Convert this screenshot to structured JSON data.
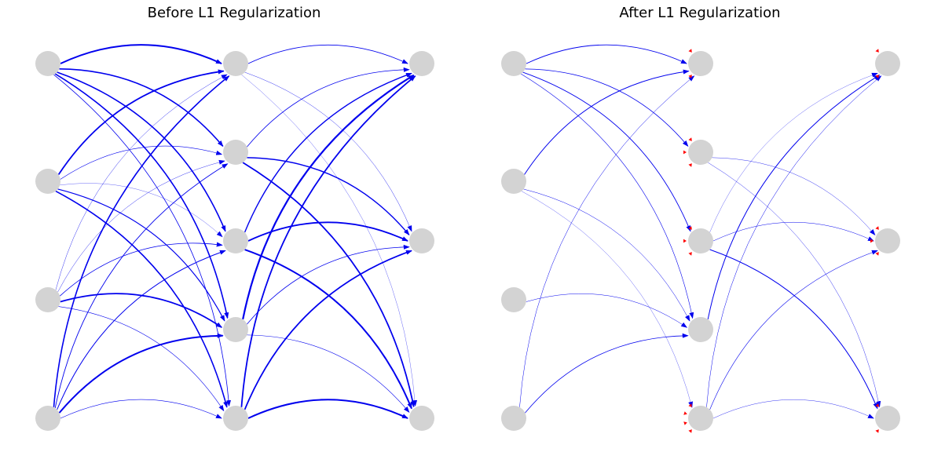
{
  "colors": {
    "node": "#d3d3d3",
    "edge": "#0000ee",
    "pruned_arrow": "#ff0000"
  },
  "panels": [
    {
      "title": "Before L1 Regularization",
      "layers": [
        4,
        5,
        3
      ],
      "edges": [
        {
          "from": [
            0,
            0
          ],
          "to": [
            1,
            0
          ],
          "w": 2.0
        },
        {
          "from": [
            0,
            0
          ],
          "to": [
            1,
            1
          ],
          "w": 1.6
        },
        {
          "from": [
            0,
            0
          ],
          "to": [
            1,
            2
          ],
          "w": 1.6
        },
        {
          "from": [
            0,
            0
          ],
          "to": [
            1,
            3
          ],
          "w": 1.6
        },
        {
          "from": [
            0,
            0
          ],
          "to": [
            1,
            4
          ],
          "w": 0.8
        },
        {
          "from": [
            0,
            1
          ],
          "to": [
            1,
            0
          ],
          "w": 1.8
        },
        {
          "from": [
            0,
            1
          ],
          "to": [
            1,
            1
          ],
          "w": 0.6
        },
        {
          "from": [
            0,
            1
          ],
          "to": [
            1,
            2
          ],
          "w": 0.3
        },
        {
          "from": [
            0,
            1
          ],
          "to": [
            1,
            3
          ],
          "w": 1.2
        },
        {
          "from": [
            0,
            1
          ],
          "to": [
            1,
            4
          ],
          "w": 1.6
        },
        {
          "from": [
            0,
            2
          ],
          "to": [
            1,
            0
          ],
          "w": 0.4
        },
        {
          "from": [
            0,
            2
          ],
          "to": [
            1,
            1
          ],
          "w": 0.4
        },
        {
          "from": [
            0,
            2
          ],
          "to": [
            1,
            2
          ],
          "w": 0.8
        },
        {
          "from": [
            0,
            2
          ],
          "to": [
            1,
            3
          ],
          "w": 1.8
        },
        {
          "from": [
            0,
            2
          ],
          "to": [
            1,
            4
          ],
          "w": 0.6
        },
        {
          "from": [
            0,
            3
          ],
          "to": [
            1,
            0
          ],
          "w": 1.6
        },
        {
          "from": [
            0,
            3
          ],
          "to": [
            1,
            1
          ],
          "w": 0.9
        },
        {
          "from": [
            0,
            3
          ],
          "to": [
            1,
            2
          ],
          "w": 1.0
        },
        {
          "from": [
            0,
            3
          ],
          "to": [
            1,
            3
          ],
          "w": 2.0
        },
        {
          "from": [
            0,
            3
          ],
          "to": [
            1,
            4
          ],
          "w": 0.6
        },
        {
          "from": [
            1,
            0
          ],
          "to": [
            2,
            0
          ],
          "w": 0.8
        },
        {
          "from": [
            1,
            0
          ],
          "to": [
            2,
            1
          ],
          "w": 0.4
        },
        {
          "from": [
            1,
            0
          ],
          "to": [
            2,
            2
          ],
          "w": 0.3
        },
        {
          "from": [
            1,
            1
          ],
          "to": [
            2,
            0
          ],
          "w": 0.8
        },
        {
          "from": [
            1,
            1
          ],
          "to": [
            2,
            1
          ],
          "w": 1.4
        },
        {
          "from": [
            1,
            1
          ],
          "to": [
            2,
            2
          ],
          "w": 1.8
        },
        {
          "from": [
            1,
            2
          ],
          "to": [
            2,
            0
          ],
          "w": 1.4
        },
        {
          "from": [
            1,
            2
          ],
          "to": [
            2,
            1
          ],
          "w": 1.8
        },
        {
          "from": [
            1,
            2
          ],
          "to": [
            2,
            2
          ],
          "w": 2.0
        },
        {
          "from": [
            1,
            3
          ],
          "to": [
            2,
            0
          ],
          "w": 2.2
        },
        {
          "from": [
            1,
            3
          ],
          "to": [
            2,
            1
          ],
          "w": 0.8
        },
        {
          "from": [
            1,
            3
          ],
          "to": [
            2,
            2
          ],
          "w": 0.6
        },
        {
          "from": [
            1,
            4
          ],
          "to": [
            2,
            0
          ],
          "w": 1.8
        },
        {
          "from": [
            1,
            4
          ],
          "to": [
            2,
            1
          ],
          "w": 1.8
        },
        {
          "from": [
            1,
            4
          ],
          "to": [
            2,
            2
          ],
          "w": 2.0
        }
      ],
      "pruned_arrows": []
    },
    {
      "title": "After L1 Regularization",
      "layers": [
        4,
        5,
        3
      ],
      "edges": [
        {
          "from": [
            0,
            0
          ],
          "to": [
            1,
            0
          ],
          "w": 0.9
        },
        {
          "from": [
            0,
            0
          ],
          "to": [
            1,
            1
          ],
          "w": 0.8
        },
        {
          "from": [
            0,
            0
          ],
          "to": [
            1,
            2
          ],
          "w": 0.9
        },
        {
          "from": [
            0,
            0
          ],
          "to": [
            1,
            3
          ],
          "w": 0.6
        },
        {
          "from": [
            0,
            1
          ],
          "to": [
            1,
            0
          ],
          "w": 1.0
        },
        {
          "from": [
            0,
            1
          ],
          "to": [
            1,
            3
          ],
          "w": 0.5
        },
        {
          "from": [
            0,
            1
          ],
          "to": [
            1,
            4
          ],
          "w": 0.3
        },
        {
          "from": [
            0,
            2
          ],
          "to": [
            1,
            3
          ],
          "w": 0.5
        },
        {
          "from": [
            0,
            3
          ],
          "to": [
            1,
            0
          ],
          "w": 0.5
        },
        {
          "from": [
            0,
            3
          ],
          "to": [
            1,
            3
          ],
          "w": 0.8
        },
        {
          "from": [
            1,
            1
          ],
          "to": [
            2,
            1
          ],
          "w": 0.4
        },
        {
          "from": [
            1,
            1
          ],
          "to": [
            2,
            2
          ],
          "w": 0.4
        },
        {
          "from": [
            1,
            2
          ],
          "to": [
            2,
            0
          ],
          "w": 0.3
        },
        {
          "from": [
            1,
            2
          ],
          "to": [
            2,
            1
          ],
          "w": 0.5
        },
        {
          "from": [
            1,
            2
          ],
          "to": [
            2,
            2
          ],
          "w": 1.0
        },
        {
          "from": [
            1,
            3
          ],
          "to": [
            2,
            0
          ],
          "w": 1.0
        },
        {
          "from": [
            1,
            4
          ],
          "to": [
            2,
            0
          ],
          "w": 0.5
        },
        {
          "from": [
            1,
            4
          ],
          "to": [
            2,
            1
          ],
          "w": 0.6
        },
        {
          "from": [
            1,
            4
          ],
          "to": [
            2,
            2
          ],
          "w": 0.4
        }
      ],
      "pruned_arrows": [
        {
          "node": [
            1,
            0
          ],
          "count": 2
        },
        {
          "node": [
            1,
            1
          ],
          "count": 3
        },
        {
          "node": [
            1,
            2
          ],
          "count": 3
        },
        {
          "node": [
            1,
            4
          ],
          "count": 4
        },
        {
          "node": [
            2,
            0
          ],
          "count": 2
        },
        {
          "node": [
            2,
            1
          ],
          "count": 3
        },
        {
          "node": [
            2,
            2
          ],
          "count": 2
        }
      ]
    }
  ]
}
